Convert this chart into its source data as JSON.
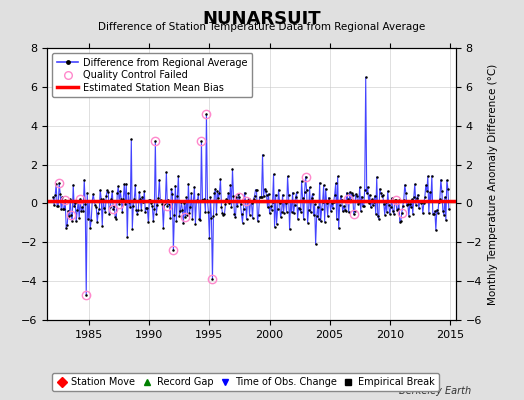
{
  "title": "NUNARSUIT",
  "subtitle": "Difference of Station Temperature Data from Regional Average",
  "ylabel_right": "Monthly Temperature Anomaly Difference (°C)",
  "xlim": [
    1981.5,
    2015.5
  ],
  "ylim": [
    -6,
    8
  ],
  "yticks": [
    -6,
    -4,
    -2,
    0,
    2,
    4,
    6,
    8
  ],
  "xticks": [
    1985,
    1990,
    1995,
    2000,
    2005,
    2010,
    2015
  ],
  "bias_value": 0.1,
  "line_color": "#4444FF",
  "dot_color": "#000000",
  "bias_color": "#FF0000",
  "qc_color": "#FF88CC",
  "background_color": "#E0E0E0",
  "plot_bg_color": "#FFFFFF",
  "watermark": "Berkeley Earth",
  "legend1_entries": [
    {
      "label": "Difference from Regional Average"
    },
    {
      "label": "Quality Control Failed"
    },
    {
      "label": "Estimated Station Mean Bias"
    }
  ],
  "legend2_entries": [
    {
      "label": "Station Move",
      "color": "#FF0000",
      "marker": "D"
    },
    {
      "label": "Record Gap",
      "color": "#008000",
      "marker": "^"
    },
    {
      "label": "Time of Obs. Change",
      "color": "#0000FF",
      "marker": "v"
    },
    {
      "label": "Empirical Break",
      "color": "#000000",
      "marker": "s"
    }
  ],
  "seed": 42,
  "n_months_start_year": 1982,
  "n_months_end_year": 2015,
  "data_std": 0.65,
  "spikes": [
    {
      "year": 1984.75,
      "value": -4.7
    },
    {
      "year": 1988.5,
      "value": 3.3
    },
    {
      "year": 1990.5,
      "value": 3.2
    },
    {
      "year": 1992.0,
      "value": -2.4
    },
    {
      "year": 1994.3,
      "value": 3.2
    },
    {
      "year": 1994.75,
      "value": 4.6
    },
    {
      "year": 1995.0,
      "value": -1.8
    },
    {
      "year": 1995.25,
      "value": -3.9
    },
    {
      "year": 2008.0,
      "value": 6.5
    }
  ],
  "qc_years": [
    1982.5,
    1983.0,
    1983.5,
    1984.25,
    1984.75,
    1987.0,
    1987.5,
    1990.5,
    1991.5,
    1992.0,
    1993.0,
    1994.3,
    1994.75,
    1995.25,
    1997.5,
    1998.0,
    2003.0,
    2006.5,
    2007.0,
    2010.5,
    2011.0
  ]
}
